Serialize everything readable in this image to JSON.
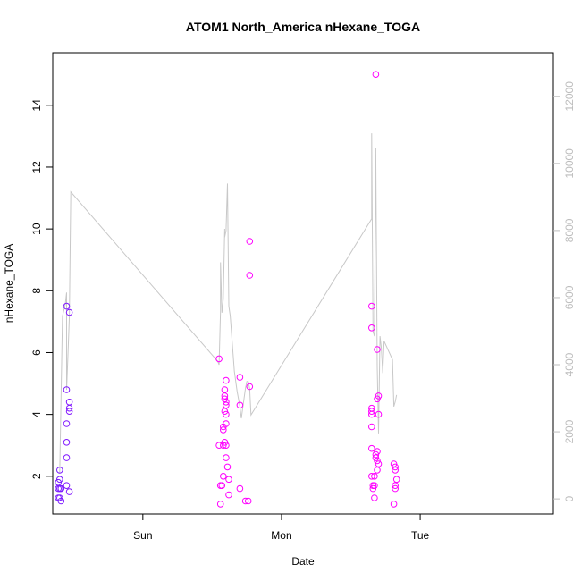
{
  "chart_data": {
    "type": "scatter",
    "title": "ATOM1 North_America nHexane_TOGA",
    "xlabel": "Date",
    "ylabel": "nHexane_TOGA",
    "x_axis": {
      "kind": "time",
      "ticks": [
        {
          "label": "Sun",
          "day": 1.0
        },
        {
          "label": "Mon",
          "day": 2.0
        },
        {
          "label": "Tue",
          "day": 3.0
        }
      ],
      "range_days": [
        0.35,
        3.96
      ]
    },
    "y_axis_left": {
      "ticks": [
        2,
        4,
        6,
        8,
        10,
        12,
        14
      ],
      "ylim": [
        0.78,
        15.7
      ]
    },
    "y_axis_right": {
      "ticks": [
        0,
        2000,
        4000,
        6000,
        8000,
        10000,
        12000
      ],
      "color": "#bdbdbd",
      "ylim": [
        -450,
        13300
      ]
    },
    "grid": false,
    "legend": "none",
    "series": [
      {
        "kind": "points",
        "color_start": "#7a1cff",
        "color_end": "#ff00ff",
        "points": [
          [
            0.39,
            1.3
          ],
          [
            0.39,
            1.6
          ],
          [
            0.39,
            1.8
          ],
          [
            0.4,
            2.2
          ],
          [
            0.4,
            1.6
          ],
          [
            0.4,
            1.3
          ],
          [
            0.41,
            1.2
          ],
          [
            0.4,
            1.9
          ],
          [
            0.41,
            1.6
          ],
          [
            0.45,
            4.8
          ],
          [
            0.45,
            3.7
          ],
          [
            0.45,
            3.1
          ],
          [
            0.45,
            2.6
          ],
          [
            0.45,
            1.7
          ],
          [
            0.45,
            7.5
          ],
          [
            0.47,
            7.3
          ],
          [
            0.47,
            4.4
          ],
          [
            0.47,
            4.2
          ],
          [
            0.47,
            4.1
          ],
          [
            0.47,
            1.5
          ],
          [
            1.55,
            5.8
          ],
          [
            1.55,
            3.0
          ],
          [
            1.56,
            1.1
          ],
          [
            1.56,
            1.7
          ],
          [
            1.57,
            1.7
          ],
          [
            1.58,
            2.0
          ],
          [
            1.58,
            3.0
          ],
          [
            1.58,
            3.5
          ],
          [
            1.58,
            3.6
          ],
          [
            1.59,
            3.1
          ],
          [
            1.59,
            4.1
          ],
          [
            1.59,
            4.5
          ],
          [
            1.59,
            4.6
          ],
          [
            1.59,
            4.8
          ],
          [
            1.6,
            3.7
          ],
          [
            1.6,
            3.0
          ],
          [
            1.6,
            2.6
          ],
          [
            1.6,
            4.3
          ],
          [
            1.6,
            4.4
          ],
          [
            1.6,
            4.0
          ],
          [
            1.6,
            5.1
          ],
          [
            1.61,
            2.3
          ],
          [
            1.62,
            1.9
          ],
          [
            1.62,
            1.4
          ],
          [
            1.7,
            5.2
          ],
          [
            1.7,
            4.3
          ],
          [
            1.7,
            1.6
          ],
          [
            1.74,
            1.2
          ],
          [
            1.76,
            1.2
          ],
          [
            1.77,
            4.9
          ],
          [
            1.77,
            9.6
          ],
          [
            1.77,
            8.5
          ],
          [
            2.65,
            7.5
          ],
          [
            2.65,
            6.8
          ],
          [
            2.65,
            4.1
          ],
          [
            2.65,
            4.2
          ],
          [
            2.65,
            4.0
          ],
          [
            2.65,
            3.6
          ],
          [
            2.65,
            2.9
          ],
          [
            2.65,
            2.0
          ],
          [
            2.66,
            1.7
          ],
          [
            2.66,
            1.6
          ],
          [
            2.67,
            1.7
          ],
          [
            2.67,
            1.3
          ],
          [
            2.67,
            2.0
          ],
          [
            2.68,
            15.0
          ],
          [
            2.68,
            2.7
          ],
          [
            2.68,
            2.6
          ],
          [
            2.69,
            2.5
          ],
          [
            2.69,
            2.8
          ],
          [
            2.69,
            2.2
          ],
          [
            2.69,
            4.5
          ],
          [
            2.69,
            6.1
          ],
          [
            2.7,
            2.4
          ],
          [
            2.7,
            4.6
          ],
          [
            2.7,
            4.0
          ],
          [
            2.81,
            2.4
          ],
          [
            2.81,
            1.1
          ],
          [
            2.82,
            2.2
          ],
          [
            2.82,
            1.7
          ],
          [
            2.82,
            1.6
          ],
          [
            2.82,
            2.3
          ],
          [
            2.83,
            1.9
          ]
        ]
      },
      {
        "kind": "line",
        "axis": "right",
        "color": "#c8c8c8",
        "points": [
          [
            0.4,
            760
          ],
          [
            0.42,
            5450
          ],
          [
            0.44,
            5800
          ],
          [
            0.44,
            5800
          ],
          [
            0.45,
            6150
          ],
          [
            0.45,
            3250
          ],
          [
            0.46,
            4350
          ],
          [
            0.47,
            5450
          ],
          [
            0.48,
            9150
          ],
          [
            1.54,
            4100
          ],
          [
            1.55,
            4000
          ],
          [
            1.56,
            5600
          ],
          [
            1.56,
            7050
          ],
          [
            1.57,
            5550
          ],
          [
            1.58,
            5950
          ],
          [
            1.59,
            8050
          ],
          [
            1.59,
            7800
          ],
          [
            1.6,
            8000
          ],
          [
            1.61,
            9400
          ],
          [
            1.62,
            5750
          ],
          [
            1.63,
            5450
          ],
          [
            1.66,
            3800
          ],
          [
            1.68,
            3200
          ],
          [
            1.7,
            2750
          ],
          [
            1.71,
            2400
          ],
          [
            1.74,
            3300
          ],
          [
            1.75,
            3500
          ],
          [
            1.76,
            3500
          ],
          [
            1.77,
            3300
          ],
          [
            1.78,
            2500
          ],
          [
            2.65,
            8350
          ],
          [
            2.65,
            10900
          ],
          [
            2.66,
            5000
          ],
          [
            2.67,
            4850
          ],
          [
            2.67,
            4850
          ],
          [
            2.68,
            10450
          ],
          [
            2.69,
            3950
          ],
          [
            2.7,
            1950
          ],
          [
            2.71,
            4850
          ],
          [
            2.72,
            4500
          ],
          [
            2.73,
            3750
          ],
          [
            2.74,
            4700
          ],
          [
            2.8,
            4150
          ],
          [
            2.81,
            2750
          ],
          [
            2.82,
            2900
          ],
          [
            2.83,
            3100
          ]
        ]
      }
    ]
  }
}
